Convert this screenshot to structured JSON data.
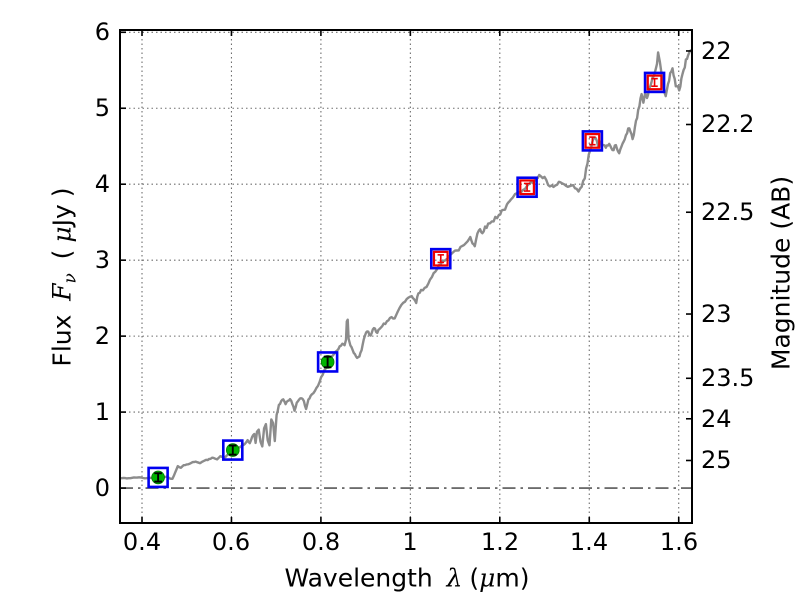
{
  "labels": {
    "xlabel_word": "Wavelength",
    "xlabel_lambda": "λ",
    "xlabel_paren_open": "(",
    "xlabel_mu": "μ",
    "xlabel_paren_close": "m)",
    "ylabel_word": "Flux",
    "ylabel_F": "F",
    "ylabel_nu": "ν",
    "ylabel_paren_open": "(",
    "ylabel_mu": "μ",
    "ylabel_unit": "Jy",
    "ylabel_paren_close": ")",
    "ylabel_right": "Magnitude (AB)"
  },
  "colors": {
    "background": "#ffffff",
    "axis": "#000000",
    "grid": "#6e6e6e",
    "zero_line": "#3a3a3a",
    "spectrum": "#8c8c8c",
    "blue_square": "#0000f0",
    "red_square": "#ee0000",
    "green_circle": "#00b400",
    "black_errorbar": "#000000"
  },
  "chart_data": {
    "type": "line",
    "title": "",
    "xlabel": "Wavelength λ (μm)",
    "ylabel": "Flux Fν ( μJy )",
    "ylabel_right": "Magnitude (AB)",
    "grid": "dotted",
    "legend": "none",
    "xlim": [
      0.3508,
      1.6297
    ],
    "ylim_flux": [
      -0.46,
      6.03
    ],
    "x_ticks": {
      "values": [
        0.4,
        0.6,
        0.8,
        1.0,
        1.2,
        1.4,
        1.6
      ],
      "labels": [
        "0.4",
        "0.6",
        "0.8",
        "1",
        "1.2",
        "1.4",
        "1.6"
      ]
    },
    "y_ticks_left": {
      "values": [
        0,
        1,
        2,
        3,
        4,
        5,
        6
      ],
      "labels": [
        "0",
        "1",
        "2",
        "3",
        "4",
        "5",
        "6"
      ]
    },
    "y_ticks_right": {
      "labels": [
        "22",
        "22.2",
        "22.5",
        "23",
        "23.5",
        "24",
        "25"
      ],
      "flux_values": [
        5.754,
        4.786,
        3.631,
        2.291,
        1.445,
        0.912,
        0.363
      ]
    },
    "zero_line_flux": 0,
    "series": [
      {
        "name": "model-spectrum",
        "type": "line",
        "color_key": "spectrum",
        "noise_amp_base": 0.004,
        "noise_amp_per_flux": 0.0075,
        "noise_seed": 42,
        "x": [
          0.351,
          0.37,
          0.39,
          0.41,
          0.425,
          0.44,
          0.455,
          0.462,
          0.468,
          0.474,
          0.48,
          0.487,
          0.493,
          0.5,
          0.51,
          0.52,
          0.53,
          0.54,
          0.55,
          0.56,
          0.568,
          0.575,
          0.583,
          0.59,
          0.6,
          0.61,
          0.62,
          0.63,
          0.636,
          0.641,
          0.646,
          0.651,
          0.654,
          0.657,
          0.661,
          0.665,
          0.669,
          0.673,
          0.677,
          0.681,
          0.685,
          0.689,
          0.693,
          0.697,
          0.701,
          0.706,
          0.711,
          0.716,
          0.721,
          0.726,
          0.731,
          0.736,
          0.741,
          0.746,
          0.751,
          0.757,
          0.762,
          0.767,
          0.772,
          0.777,
          0.783,
          0.79,
          0.797,
          0.804,
          0.811,
          0.818,
          0.824,
          0.83,
          0.836,
          0.842,
          0.848,
          0.853,
          0.856,
          0.858,
          0.86,
          0.862,
          0.866,
          0.871,
          0.876,
          0.881,
          0.886,
          0.891,
          0.896,
          0.901,
          0.906,
          0.911,
          0.916,
          0.921,
          0.926,
          0.931,
          0.937,
          0.944,
          0.951,
          0.958,
          0.965,
          0.972,
          0.98,
          0.988,
          0.996,
          1.003,
          1.008,
          1.013,
          1.018,
          1.024,
          1.032,
          1.04,
          1.048,
          1.056,
          1.064,
          1.072,
          1.08,
          1.088,
          1.096,
          1.104,
          1.112,
          1.12,
          1.128,
          1.134,
          1.139,
          1.144,
          1.15,
          1.156,
          1.161,
          1.167,
          1.174,
          1.182,
          1.19,
          1.198,
          1.207,
          1.216,
          1.225,
          1.234,
          1.243,
          1.252,
          1.261,
          1.27,
          1.279,
          1.288,
          1.296,
          1.304,
          1.312,
          1.32,
          1.328,
          1.336,
          1.344,
          1.352,
          1.36,
          1.368,
          1.376,
          1.383,
          1.39,
          1.396,
          1.402,
          1.407,
          1.412,
          1.417,
          1.422,
          1.427,
          1.432,
          1.437,
          1.442,
          1.447,
          1.452,
          1.457,
          1.462,
          1.467,
          1.472,
          1.477,
          1.482,
          1.487,
          1.492,
          1.497,
          1.502,
          1.507,
          1.512,
          1.517,
          1.521,
          1.525,
          1.529,
          1.534,
          1.539,
          1.544,
          1.549,
          1.554,
          1.558,
          1.562,
          1.566,
          1.571,
          1.576,
          1.581,
          1.586,
          1.591,
          1.596,
          1.601,
          1.606,
          1.611,
          1.616,
          1.621,
          1.629
        ],
        "y": [
          0.13,
          0.13,
          0.14,
          0.13,
          0.14,
          0.14,
          0.15,
          0.13,
          0.12,
          0.2,
          0.29,
          0.27,
          0.3,
          0.31,
          0.33,
          0.35,
          0.33,
          0.36,
          0.38,
          0.4,
          0.38,
          0.42,
          0.4,
          0.43,
          0.46,
          0.5,
          0.54,
          0.58,
          0.63,
          0.59,
          0.67,
          0.71,
          0.59,
          0.74,
          0.77,
          0.61,
          0.55,
          0.79,
          0.84,
          0.63,
          0.56,
          0.9,
          0.86,
          0.62,
          0.96,
          1.09,
          1.14,
          1.17,
          1.11,
          1.15,
          1.17,
          1.11,
          1.02,
          1.12,
          1.17,
          1.18,
          1.14,
          1.04,
          1.17,
          1.21,
          1.25,
          1.32,
          1.4,
          1.49,
          1.58,
          1.68,
          1.73,
          1.77,
          1.81,
          1.86,
          1.9,
          1.88,
          1.95,
          2.2,
          2.22,
          1.97,
          1.88,
          1.82,
          1.76,
          1.72,
          1.74,
          1.82,
          1.96,
          2.04,
          2.06,
          2.0,
          2.08,
          2.1,
          2.04,
          2.1,
          2.13,
          2.16,
          2.2,
          2.26,
          2.24,
          2.32,
          2.4,
          2.45,
          2.5,
          2.53,
          2.48,
          2.44,
          2.56,
          2.6,
          2.64,
          2.7,
          2.77,
          2.84,
          2.93,
          3.0,
          3.02,
          3.06,
          3.1,
          3.12,
          3.17,
          3.2,
          3.25,
          3.31,
          3.23,
          3.19,
          3.35,
          3.41,
          3.37,
          3.43,
          3.47,
          3.51,
          3.56,
          3.6,
          3.66,
          3.72,
          3.79,
          3.86,
          3.91,
          3.94,
          3.97,
          4.02,
          4.07,
          4.11,
          4.09,
          4.04,
          3.97,
          3.95,
          3.99,
          4.03,
          3.99,
          3.96,
          3.98,
          3.93,
          3.91,
          3.96,
          4.08,
          4.28,
          4.45,
          4.56,
          4.6,
          4.56,
          4.5,
          4.55,
          4.51,
          4.47,
          4.52,
          4.49,
          4.45,
          4.51,
          4.46,
          4.41,
          4.49,
          4.58,
          4.66,
          4.74,
          4.68,
          4.61,
          4.76,
          4.88,
          5.02,
          5.17,
          5.08,
          5.22,
          5.13,
          5.27,
          5.35,
          5.42,
          5.52,
          5.72,
          5.6,
          5.42,
          5.3,
          5.18,
          5.33,
          5.44,
          5.51,
          5.38,
          5.28,
          5.24,
          5.38,
          5.52,
          5.63,
          5.68,
          5.77
        ]
      },
      {
        "name": "synthetic-photometry-squares",
        "type": "scatter",
        "marker": "open-square-blue",
        "color_key": "blue_square",
        "points": [
          [
            0.436,
            0.14
          ],
          [
            0.603,
            0.5
          ],
          [
            0.815,
            1.66
          ],
          [
            1.068,
            3.02
          ],
          [
            1.261,
            3.96
          ],
          [
            1.407,
            4.57
          ],
          [
            1.546,
            5.34
          ]
        ]
      },
      {
        "name": "observed-photometry-optical",
        "type": "scatter",
        "marker": "filled-circle-green",
        "color_key": "green_circle",
        "errorbar_color_key": "black_errorbar",
        "points": [
          [
            0.436,
            0.14,
            0.055
          ],
          [
            0.603,
            0.5,
            0.06
          ],
          [
            0.815,
            1.66,
            0.07
          ]
        ]
      },
      {
        "name": "observed-photometry-infrared",
        "type": "scatter",
        "marker": "open-square-red",
        "color_key": "red_square",
        "errorbar_color_key": "red_square",
        "points": [
          [
            1.068,
            3.02,
            0.05
          ],
          [
            1.261,
            3.96,
            0.05
          ],
          [
            1.407,
            4.57,
            0.05
          ],
          [
            1.546,
            5.34,
            0.05
          ]
        ]
      }
    ]
  }
}
